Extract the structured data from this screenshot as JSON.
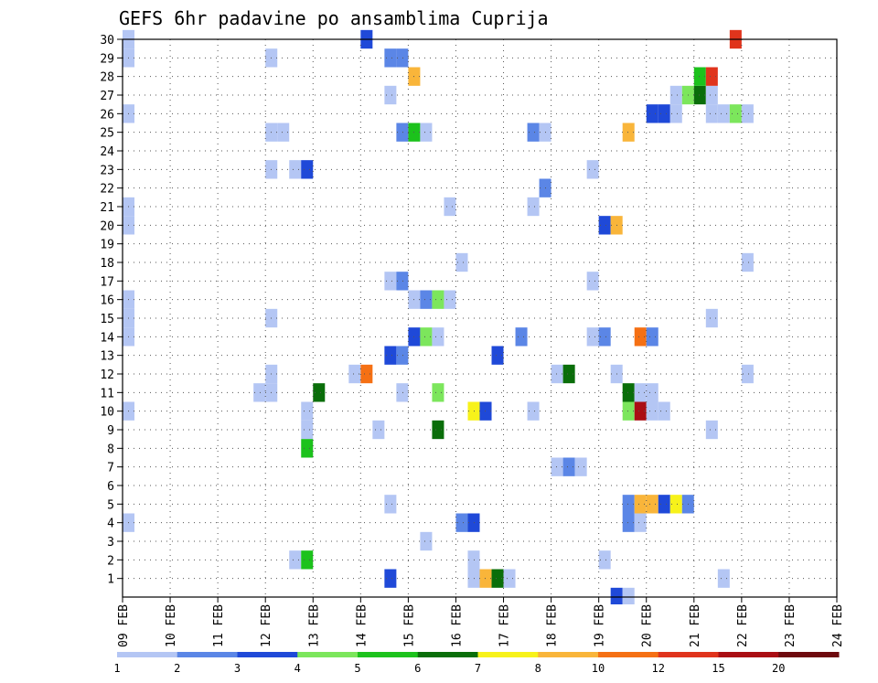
{
  "chart_data": {
    "type": "heatmap",
    "title": "GEFS 6hr padavine po ansamblima Cuprija",
    "xlabel": "",
    "ylabel": "",
    "x_tick_labels": [
      "09 FEB",
      "10 FEB",
      "11 FEB",
      "12 FEB",
      "13 FEB",
      "14 FEB",
      "15 FEB",
      "16 FEB",
      "17 FEB",
      "18 FEB",
      "19 FEB",
      "20 FEB",
      "21 FEB",
      "22 FEB",
      "23 FEB",
      "24 FEB"
    ],
    "y_tick_labels": [
      "1",
      "2",
      "3",
      "4",
      "5",
      "6",
      "7",
      "8",
      "9",
      "10",
      "11",
      "12",
      "13",
      "14",
      "15",
      "16",
      "17",
      "18",
      "19",
      "20",
      "21",
      "22",
      "23",
      "24",
      "25",
      "26",
      "27",
      "28",
      "29",
      "30"
    ],
    "x_unit": "6-hour step from 09 FEB 00z",
    "y_unit": "ensemble member",
    "xlim": [
      0,
      60
    ],
    "ylim": [
      0,
      30
    ],
    "grid": true,
    "legend_position": "bottom",
    "colorbar": {
      "tick_labels": [
        "1",
        "2",
        "3",
        "4",
        "5",
        "6",
        "7",
        "8",
        "10",
        "12",
        "15",
        "20"
      ],
      "colors": [
        "#b4c6f4",
        "#5b86e6",
        "#1f49d8",
        "#7ce65c",
        "#1cc21c",
        "#0a6e0a",
        "#f7f21a",
        "#f9b53a",
        "#f57014",
        "#e0341c",
        "#aa0e14",
        "#6e0a0e"
      ]
    },
    "cells": [
      [
        0.5,
        30,
        "#b4c6f4"
      ],
      [
        0.5,
        29,
        "#b4c6f4"
      ],
      [
        0.5,
        26,
        "#b4c6f4"
      ],
      [
        0.5,
        21,
        "#b4c6f4"
      ],
      [
        0.5,
        20,
        "#b4c6f4"
      ],
      [
        0.5,
        16,
        "#b4c6f4"
      ],
      [
        0.5,
        15,
        "#b4c6f4"
      ],
      [
        0.5,
        14,
        "#b4c6f4"
      ],
      [
        0.5,
        10,
        "#b4c6f4"
      ],
      [
        0.5,
        4,
        "#b4c6f4"
      ],
      [
        12.5,
        29,
        "#b4c6f4"
      ],
      [
        12.5,
        25,
        "#b4c6f4"
      ],
      [
        13.5,
        25,
        "#b4c6f4"
      ],
      [
        12.5,
        23,
        "#b4c6f4"
      ],
      [
        12.5,
        15,
        "#b4c6f4"
      ],
      [
        12.5,
        12,
        "#b4c6f4"
      ],
      [
        11.5,
        11,
        "#b4c6f4"
      ],
      [
        12.5,
        11,
        "#b4c6f4"
      ],
      [
        14.5,
        23,
        "#b4c6f4"
      ],
      [
        15.5,
        23,
        "#1f49d8"
      ],
      [
        15.5,
        10,
        "#b4c6f4"
      ],
      [
        15.5,
        9,
        "#b4c6f4"
      ],
      [
        15.5,
        8,
        "#1cc21c"
      ],
      [
        14.5,
        2,
        "#b4c6f4"
      ],
      [
        15.5,
        2,
        "#1cc21c"
      ],
      [
        16.5,
        11,
        "#0a6e0a"
      ],
      [
        20.5,
        30,
        "#1f49d8"
      ],
      [
        19.5,
        12,
        "#b4c6f4"
      ],
      [
        20.5,
        12,
        "#f57014"
      ],
      [
        21.5,
        9,
        "#b4c6f4"
      ],
      [
        22.5,
        13,
        "#1f49d8"
      ],
      [
        22.5,
        29,
        "#5b86e6"
      ],
      [
        23.5,
        29,
        "#5b86e6"
      ],
      [
        24.5,
        28,
        "#f9b53a"
      ],
      [
        22.5,
        27,
        "#b4c6f4"
      ],
      [
        23.5,
        25,
        "#5b86e6"
      ],
      [
        24.5,
        25,
        "#1cc21c"
      ],
      [
        25.5,
        25,
        "#b4c6f4"
      ],
      [
        22.5,
        17,
        "#b4c6f4"
      ],
      [
        23.5,
        17,
        "#5b86e6"
      ],
      [
        24.5,
        16,
        "#b4c6f4"
      ],
      [
        25.5,
        16,
        "#5b86e6"
      ],
      [
        26.5,
        16,
        "#7ce65c"
      ],
      [
        27.5,
        16,
        "#b4c6f4"
      ],
      [
        24.5,
        14,
        "#1f49d8"
      ],
      [
        25.5,
        14,
        "#7ce65c"
      ],
      [
        26.5,
        14,
        "#b4c6f4"
      ],
      [
        23.5,
        13,
        "#5b86e6"
      ],
      [
        23.5,
        11,
        "#b4c6f4"
      ],
      [
        26.5,
        11,
        "#7ce65c"
      ],
      [
        26.5,
        9,
        "#0a6e0a"
      ],
      [
        22.5,
        5,
        "#b4c6f4"
      ],
      [
        25.5,
        3,
        "#b4c6f4"
      ],
      [
        22.5,
        1,
        "#1f49d8"
      ],
      [
        27.5,
        21,
        "#b4c6f4"
      ],
      [
        28.5,
        18,
        "#b4c6f4"
      ],
      [
        28.5,
        4,
        "#5b86e6"
      ],
      [
        29.5,
        4,
        "#1f49d8"
      ],
      [
        29.5,
        2,
        "#b4c6f4"
      ],
      [
        29.5,
        10,
        "#f7f21a"
      ],
      [
        30.5,
        10,
        "#1f49d8"
      ],
      [
        29.5,
        1,
        "#b4c6f4"
      ],
      [
        30.5,
        1,
        "#f9b53a"
      ],
      [
        31.5,
        1,
        "#0a6e0a"
      ],
      [
        32.5,
        1,
        "#b4c6f4"
      ],
      [
        31.5,
        13,
        "#1f49d8"
      ],
      [
        34.5,
        25,
        "#5b86e6"
      ],
      [
        35.5,
        25,
        "#b4c6f4"
      ],
      [
        35.5,
        22,
        "#5b86e6"
      ],
      [
        34.5,
        21,
        "#b4c6f4"
      ],
      [
        33.5,
        14,
        "#5b86e6"
      ],
      [
        34.5,
        10,
        "#b4c6f4"
      ],
      [
        36.5,
        12,
        "#b4c6f4"
      ],
      [
        37.5,
        12,
        "#0a6e0a"
      ],
      [
        36.5,
        7,
        "#b4c6f4"
      ],
      [
        37.5,
        7,
        "#5b86e6"
      ],
      [
        38.5,
        7,
        "#b4c6f4"
      ],
      [
        39.5,
        23,
        "#b4c6f4"
      ],
      [
        40.5,
        20,
        "#1f49d8"
      ],
      [
        41.5,
        20,
        "#f9b53a"
      ],
      [
        39.5,
        17,
        "#b4c6f4"
      ],
      [
        39.5,
        14,
        "#b4c6f4"
      ],
      [
        40.5,
        14,
        "#5b86e6"
      ],
      [
        41.5,
        12,
        "#b4c6f4"
      ],
      [
        40.5,
        2,
        "#b4c6f4"
      ],
      [
        41.5,
        0,
        "#1f49d8"
      ],
      [
        42.5,
        0,
        "#b4c6f4"
      ],
      [
        42.5,
        25,
        "#f9b53a"
      ],
      [
        44.5,
        26,
        "#1f49d8"
      ],
      [
        45.5,
        26,
        "#1f49d8"
      ],
      [
        46.5,
        26,
        "#b4c6f4"
      ],
      [
        46.5,
        27,
        "#b4c6f4"
      ],
      [
        47.5,
        27,
        "#7ce65c"
      ],
      [
        48.5,
        27,
        "#0a6e0a"
      ],
      [
        49.5,
        27,
        "#b4c6f4"
      ],
      [
        48.5,
        28,
        "#1cc21c"
      ],
      [
        49.5,
        28,
        "#e0341c"
      ],
      [
        51.5,
        30,
        "#e0341c"
      ],
      [
        49.5,
        26,
        "#b4c6f4"
      ],
      [
        50.5,
        26,
        "#b4c6f4"
      ],
      [
        51.5,
        26,
        "#7ce65c"
      ],
      [
        52.5,
        26,
        "#b4c6f4"
      ],
      [
        52.5,
        18,
        "#b4c6f4"
      ],
      [
        43.5,
        14,
        "#f57014"
      ],
      [
        44.5,
        14,
        "#5b86e6"
      ],
      [
        42.5,
        11,
        "#0a6e0a"
      ],
      [
        43.5,
        11,
        "#b4c6f4"
      ],
      [
        44.5,
        11,
        "#b4c6f4"
      ],
      [
        42.5,
        10,
        "#7ce65c"
      ],
      [
        43.5,
        10,
        "#aa0e14"
      ],
      [
        44.5,
        10,
        "#b4c6f4"
      ],
      [
        45.5,
        10,
        "#b4c6f4"
      ],
      [
        42.5,
        5,
        "#5b86e6"
      ],
      [
        43.5,
        5,
        "#f9b53a"
      ],
      [
        44.5,
        5,
        "#f9b53a"
      ],
      [
        45.5,
        5,
        "#1f49d8"
      ],
      [
        46.5,
        5,
        "#f7f21a"
      ],
      [
        47.5,
        5,
        "#5b86e6"
      ],
      [
        42.5,
        4,
        "#5b86e6"
      ],
      [
        43.5,
        4,
        "#b4c6f4"
      ],
      [
        49.5,
        15,
        "#b4c6f4"
      ],
      [
        49.5,
        9,
        "#b4c6f4"
      ],
      [
        52.5,
        12,
        "#b4c6f4"
      ],
      [
        50.5,
        1,
        "#b4c6f4"
      ]
    ]
  }
}
